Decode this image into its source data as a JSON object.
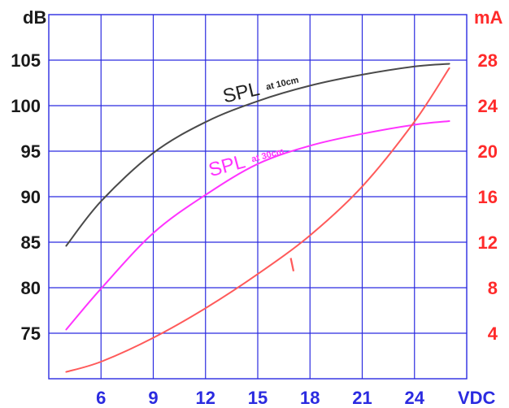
{
  "chart_data": {
    "type": "line",
    "axes": {
      "left_unit": "dB",
      "right_unit": "mA",
      "x_unit": "VDC",
      "x_ticks": [
        "6",
        "9",
        "12",
        "15",
        "18",
        "21",
        "24"
      ],
      "left_ticks": [
        "75",
        "80",
        "85",
        "90",
        "95",
        "100",
        "105"
      ],
      "right_ticks": [
        "4",
        "8",
        "12",
        "16",
        "20",
        "24",
        "28"
      ],
      "x_range": [
        3,
        27
      ],
      "left_range": [
        70,
        110
      ],
      "right_range": [
        0,
        32
      ],
      "grid": true
    },
    "series": [
      {
        "name": "SPL",
        "subscript": "at 10cm",
        "axis": "left",
        "color": "#4a4a4a",
        "x": [
          4,
          6,
          9,
          12,
          15,
          18,
          21,
          24,
          26
        ],
        "y": [
          84.6,
          89.5,
          94.8,
          98.2,
          100.5,
          102.2,
          103.4,
          104.3,
          104.6
        ]
      },
      {
        "name": "SPL",
        "subscript": "at 30cm",
        "axis": "left",
        "color": "#ff33ff",
        "x": [
          4,
          6,
          9,
          12,
          15,
          18,
          21,
          24,
          26
        ],
        "y": [
          75.4,
          79.9,
          86.0,
          90.2,
          93.6,
          95.6,
          96.9,
          97.9,
          98.3
        ]
      },
      {
        "name": "I",
        "axis": "right",
        "color": "#ff5a5a",
        "x": [
          4,
          6,
          9,
          12,
          15,
          18,
          21,
          24,
          26
        ],
        "y": [
          0.6,
          1.5,
          3.6,
          6.2,
          9.2,
          12.6,
          16.9,
          22.6,
          27.3
        ]
      }
    ]
  }
}
